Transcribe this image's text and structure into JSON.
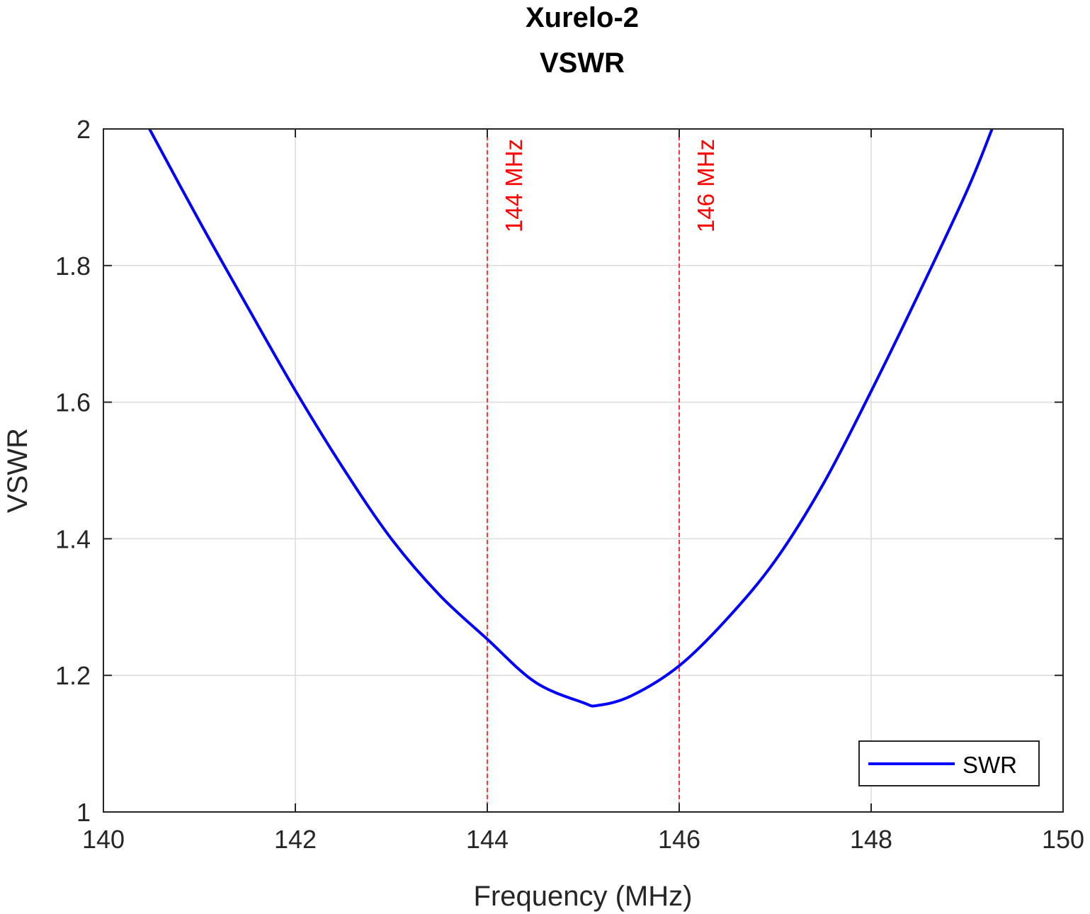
{
  "chart_data": {
    "type": "line",
    "title": [
      "Xurelo-2",
      "VSWR"
    ],
    "xlabel": "Frequency (MHz)",
    "ylabel": "VSWR",
    "xlim": [
      140,
      150
    ],
    "ylim": [
      1,
      2
    ],
    "xticks": [
      140,
      142,
      144,
      146,
      148,
      150
    ],
    "xtick_labels": [
      "140",
      "142",
      "144",
      "146",
      "148",
      "150"
    ],
    "yticks": [
      1,
      1.2,
      1.4,
      1.6,
      1.8,
      2
    ],
    "ytick_labels": [
      "1",
      "1.2",
      "1.4",
      "1.6",
      "1.8",
      "2"
    ],
    "grid": true,
    "legend": {
      "position": "bottom-right",
      "entries": [
        "SWR"
      ]
    },
    "series": [
      {
        "name": "SWR",
        "color": "#0000ff",
        "x": [
          140.48,
          141.0,
          141.5,
          142.0,
          142.5,
          143.0,
          143.5,
          144.0,
          144.5,
          145.0,
          145.15,
          145.5,
          146.0,
          146.5,
          147.0,
          147.5,
          148.0,
          148.5,
          149.0,
          149.26
        ],
        "y": [
          2.0,
          1.865,
          1.74,
          1.617,
          1.503,
          1.4,
          1.318,
          1.253,
          1.19,
          1.16,
          1.156,
          1.17,
          1.214,
          1.283,
          1.368,
          1.48,
          1.616,
          1.76,
          1.91,
          2.0
        ]
      }
    ],
    "vlines": [
      {
        "x": 144,
        "label": "144 MHz",
        "color": "#ff0000",
        "style": "dashed"
      },
      {
        "x": 146,
        "label": "146 MHz",
        "color": "#ff0000",
        "style": "dashed"
      }
    ]
  }
}
